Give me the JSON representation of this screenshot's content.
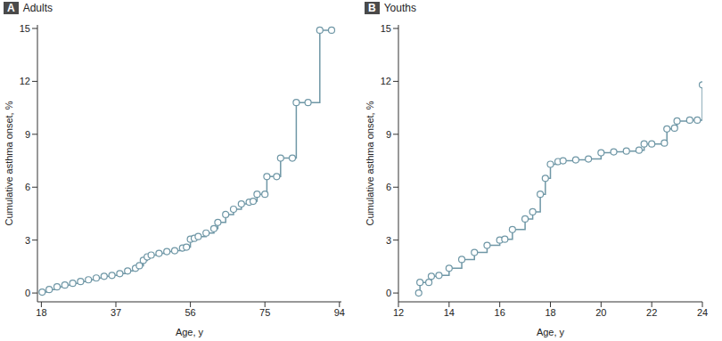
{
  "chart_data": [
    {
      "type": "line",
      "panel": "A",
      "title": "Adults",
      "x_label": "Age, y",
      "y_label": "Cumulative asthma onset, %",
      "color": "#6f97a6",
      "marker": "circle",
      "line_style": "step",
      "x": [
        18.2,
        20,
        22,
        24,
        26,
        28,
        30,
        32,
        34,
        36,
        38,
        40,
        42,
        43,
        44,
        45,
        46,
        48,
        50,
        52,
        54,
        55,
        56,
        57,
        58,
        60,
        62,
        63,
        65,
        67,
        69,
        71,
        72,
        73,
        75,
        75.5,
        78,
        79,
        82,
        83,
        86,
        89,
        92
      ],
      "values": [
        0.05,
        0.2,
        0.35,
        0.45,
        0.55,
        0.65,
        0.75,
        0.85,
        0.95,
        1.0,
        1.1,
        1.25,
        1.4,
        1.55,
        1.85,
        2.05,
        2.15,
        2.25,
        2.35,
        2.4,
        2.55,
        2.6,
        3.05,
        3.1,
        3.2,
        3.4,
        3.65,
        4.0,
        4.45,
        4.75,
        5.05,
        5.15,
        5.2,
        5.6,
        5.6,
        6.6,
        6.6,
        7.65,
        7.65,
        10.8,
        10.8,
        14.9,
        14.9
      ],
      "xlim": [
        17,
        94.5
      ],
      "xticks": [
        18,
        37,
        56,
        75,
        94
      ],
      "ylim": [
        -0.5,
        15.2
      ],
      "yticks": [
        0,
        3,
        6,
        9,
        12,
        15
      ]
    },
    {
      "type": "line",
      "panel": "B",
      "title": "Youths",
      "x_label": "Age, y",
      "y_label": "Cumulative asthma onset, %",
      "color": "#6f97a6",
      "marker": "circle",
      "line_style": "step",
      "x": [
        12.8,
        12.85,
        13.2,
        13.3,
        13.6,
        14,
        14.5,
        15,
        15.5,
        16,
        16.2,
        16.5,
        17,
        17.3,
        17.6,
        17.8,
        18,
        18.3,
        18.5,
        19,
        19.5,
        20,
        20.5,
        21,
        21.5,
        21.7,
        22,
        22.5,
        22.6,
        22.9,
        23,
        23.5,
        23.8,
        24
      ],
      "values": [
        0,
        0.6,
        0.6,
        0.95,
        1.0,
        1.4,
        1.9,
        2.3,
        2.7,
        3.0,
        3.05,
        3.6,
        4.2,
        4.6,
        5.6,
        6.5,
        7.3,
        7.45,
        7.5,
        7.55,
        7.6,
        7.95,
        8.0,
        8.05,
        8.1,
        8.45,
        8.45,
        8.5,
        9.3,
        9.35,
        9.75,
        9.8,
        9.8,
        11.8
      ],
      "xlim": [
        12,
        24
      ],
      "xticks": [
        12,
        14,
        16,
        18,
        20,
        22,
        24
      ],
      "ylim": [
        -0.5,
        15.2
      ],
      "yticks": [
        0,
        3,
        6,
        9,
        12,
        15
      ]
    }
  ]
}
